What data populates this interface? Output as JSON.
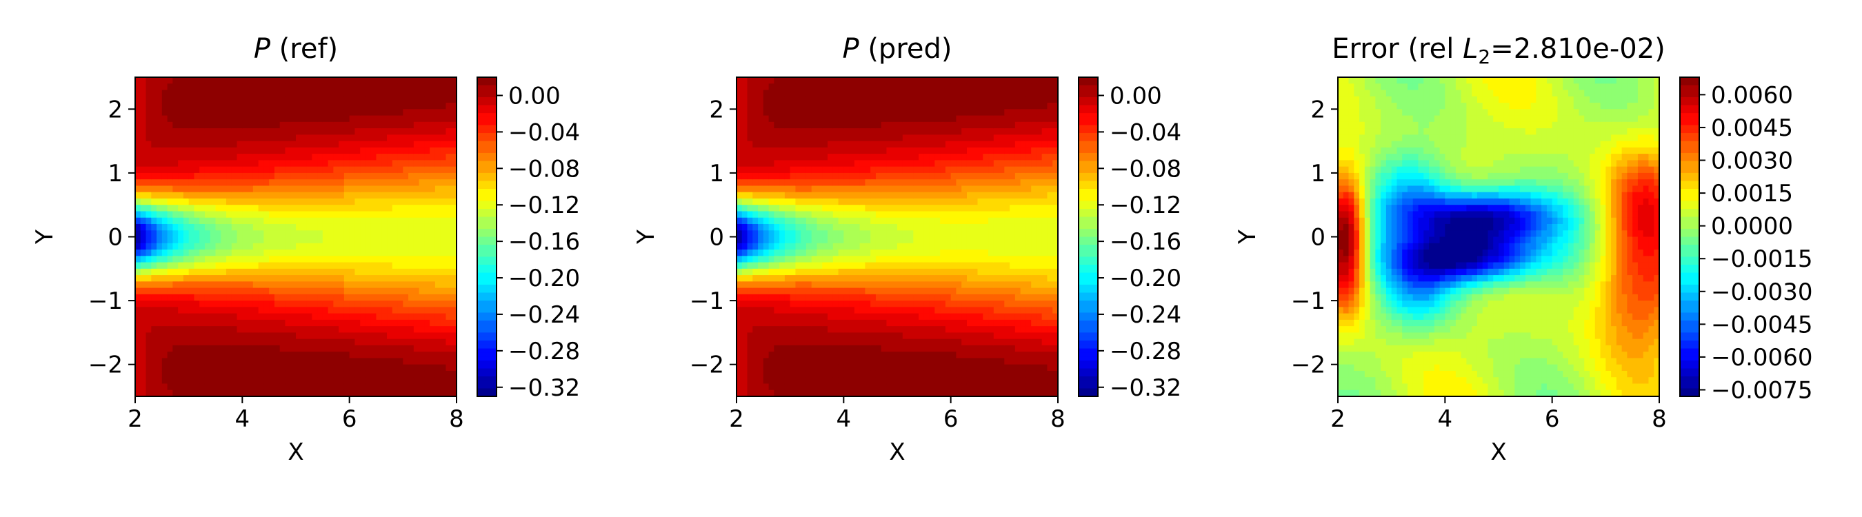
{
  "chart_data": [
    {
      "type": "heatmap",
      "title_italic": "P",
      "title_rest": " (ref)",
      "xlabel": "X",
      "ylabel": "Y",
      "xlim": [
        2,
        8
      ],
      "ylim": [
        -2.5,
        2.5
      ],
      "xticks": [
        2,
        4,
        6,
        8
      ],
      "yticks": [
        -2,
        -1,
        0,
        1,
        2
      ],
      "colormap": "jet",
      "value_range": [
        -0.33,
        0.02
      ],
      "colorbar_ticks": [
        0.0,
        -0.04,
        -0.08,
        -0.12,
        -0.16,
        -0.2,
        -0.24,
        -0.28,
        -0.32
      ],
      "colorbar_tick_labels": [
        "0.00",
        "−0.04",
        "−0.08",
        "−0.12",
        "−0.16",
        "−0.20",
        "−0.24",
        "−0.28",
        "−0.32"
      ],
      "field_description": "minimum -0.33 at (2, 0) along centerline rising to about -0.11 at x=8; near 0 at |y|>1.5"
    },
    {
      "type": "heatmap",
      "title_italic": "P",
      "title_rest": " (pred)",
      "xlabel": "X",
      "ylabel": "Y",
      "xlim": [
        2,
        8
      ],
      "ylim": [
        -2.5,
        2.5
      ],
      "xticks": [
        2,
        4,
        6,
        8
      ],
      "yticks": [
        -2,
        -1,
        0,
        1,
        2
      ],
      "colormap": "jet",
      "value_range": [
        -0.33,
        0.02
      ],
      "colorbar_ticks": [
        0.0,
        -0.04,
        -0.08,
        -0.12,
        -0.16,
        -0.2,
        -0.24,
        -0.28,
        -0.32
      ],
      "colorbar_tick_labels": [
        "0.00",
        "−0.04",
        "−0.08",
        "−0.12",
        "−0.16",
        "−0.20",
        "−0.24",
        "−0.28",
        "−0.32"
      ],
      "field_description": "nearly identical to reference field"
    },
    {
      "type": "heatmap",
      "title_plain": "Error (rel ",
      "title_italic": "L",
      "title_sub": "2",
      "title_rest": "=2.810e-02)",
      "xlabel": "X",
      "ylabel": "Y",
      "xlim": [
        2,
        8
      ],
      "ylim": [
        -2.5,
        2.5
      ],
      "xticks": [
        2,
        4,
        6,
        8
      ],
      "yticks": [
        -2,
        -1,
        0,
        1,
        2
      ],
      "colormap": "jet",
      "value_range": [
        -0.0078,
        0.0068
      ],
      "colorbar_ticks": [
        0.006,
        0.0045,
        0.003,
        0.0015,
        0.0,
        -0.0015,
        -0.003,
        -0.0045,
        -0.006,
        -0.0075
      ],
      "colorbar_tick_labels": [
        "0.0060",
        "0.0045",
        "0.0030",
        "0.0015",
        "0.0000",
        "−0.0015",
        "−0.0030",
        "−0.0045",
        "−0.0060",
        "−0.0075"
      ],
      "field_description": "strong negative error (~-0.0075) in two lobes near y=±0.3 for x in 3.5-6; positive error (~0.005) at x~2.2, |y|<1.2 and near x~7.8, |y|~0.7"
    }
  ]
}
